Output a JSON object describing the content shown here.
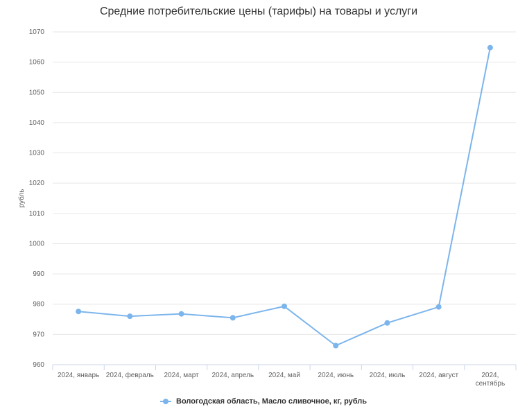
{
  "chart_data": {
    "type": "line",
    "title": "Средние потребительские цены (тарифы) на товары и услуги",
    "ylabel": "рубль",
    "xlabel": "",
    "ylim": [
      960,
      1070
    ],
    "yticks": [
      960,
      970,
      980,
      990,
      1000,
      1010,
      1020,
      1030,
      1040,
      1050,
      1060,
      1070
    ],
    "categories": [
      [
        "2024, январь"
      ],
      [
        "2024, февраль"
      ],
      [
        "2024, март"
      ],
      [
        "2024, апрель"
      ],
      [
        "2024, май"
      ],
      [
        "2024, июнь"
      ],
      [
        "2024, июль"
      ],
      [
        "2024, август"
      ],
      [
        "2024,",
        "сентябрь"
      ]
    ],
    "series": [
      {
        "name": "Вологодская область, Масло сливочное, кг, рубль",
        "color": "#7cb5ec",
        "values": [
          977.6,
          976.0,
          976.8,
          975.5,
          979.3,
          966.3,
          973.8,
          979.1,
          1064.8
        ]
      }
    ],
    "grid": true,
    "legend_position": "bottom-center"
  }
}
